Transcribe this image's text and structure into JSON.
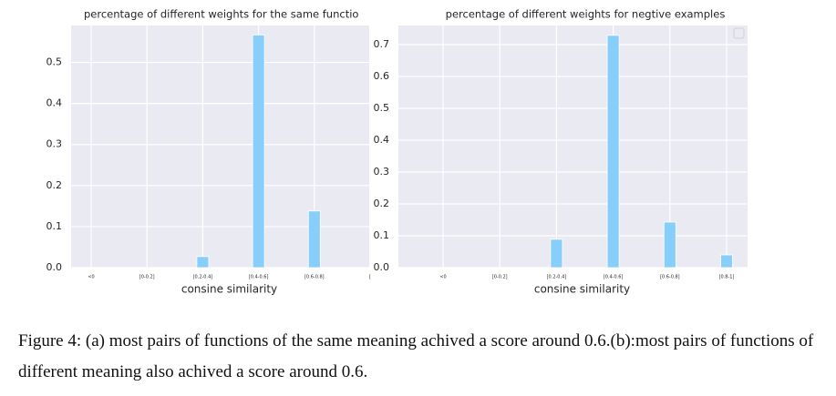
{
  "chart_data": [
    {
      "type": "bar",
      "title": "percentage of different weights for the same functio",
      "xlabel": "consine similarity",
      "categories": [
        "<0",
        "[0-0.2]",
        "[0.2-0.4]",
        "[0.4-0.6]",
        "[0.6-0.8]",
        "["
      ],
      "values": [
        0,
        0,
        0.027,
        0.567,
        0.138,
        null
      ],
      "color": "#87cefa",
      "ylim": [
        0,
        0.59
      ],
      "yticks": [
        {
          "value": 0,
          "label": "0.0"
        },
        0.1,
        0.2,
        0.3,
        0.4,
        0.5
      ],
      "grid": true
    },
    {
      "type": "bar",
      "title": "percentage of different weights for negtive examples",
      "xlabel": "consine similarity",
      "categories": [
        "<0",
        "[0-0.2]",
        "[0.2-0.4]",
        "[0.4-0.6]",
        "[0.6-0.8]",
        "[0.8-1]"
      ],
      "values": [
        0,
        0,
        0.089,
        0.729,
        0.143,
        0.04
      ],
      "color": "#87cefa",
      "ylim": [
        0,
        0.76
      ],
      "yticks": [
        {
          "value": 0,
          "label": "0.0"
        },
        0.1,
        0.2,
        0.3,
        0.4,
        0.5,
        0.6,
        0.7
      ],
      "grid": true
    }
  ],
  "caption": "Figure 4: (a) most pairs of functions of the same meaning achived a score around 0.6.(b):most pairs of functions of different meaning also achived a score around 0.6."
}
